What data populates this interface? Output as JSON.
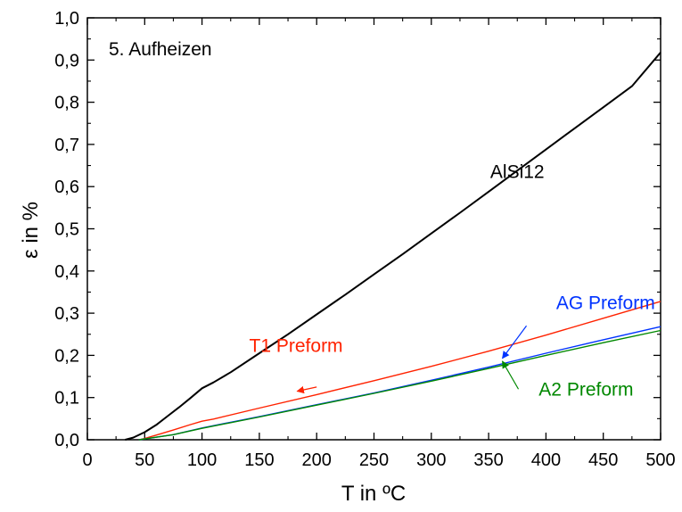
{
  "chart_data": {
    "type": "line",
    "annotation_top_left": "5. Aufheizen",
    "xlabel": "T in ºC",
    "ylabel": "ε in %",
    "xlim": [
      0,
      500
    ],
    "ylim": [
      0.0,
      1.0
    ],
    "x_ticks": [
      "0",
      "50",
      "100",
      "150",
      "200",
      "250",
      "300",
      "350",
      "400",
      "450",
      "500"
    ],
    "y_ticks": [
      "0,0",
      "0,1",
      "0,2",
      "0,3",
      "0,4",
      "0,5",
      "0,6",
      "0,7",
      "0,8",
      "0,9",
      "1,0"
    ],
    "grid": false,
    "series": [
      {
        "name": "AlSi12",
        "color": "#000000",
        "points": [
          [
            33,
            0.0
          ],
          [
            40,
            0.005
          ],
          [
            50,
            0.018
          ],
          [
            60,
            0.035
          ],
          [
            70,
            0.056
          ],
          [
            80,
            0.077
          ],
          [
            90,
            0.099
          ],
          [
            100,
            0.122
          ],
          [
            110,
            0.136
          ],
          [
            125,
            0.16
          ],
          [
            150,
            0.205
          ],
          [
            175,
            0.25
          ],
          [
            200,
            0.297
          ],
          [
            225,
            0.344
          ],
          [
            250,
            0.392
          ],
          [
            275,
            0.44
          ],
          [
            300,
            0.489
          ],
          [
            325,
            0.538
          ],
          [
            350,
            0.588
          ],
          [
            375,
            0.638
          ],
          [
            400,
            0.688
          ],
          [
            425,
            0.738
          ],
          [
            450,
            0.788
          ],
          [
            475,
            0.838
          ],
          [
            500,
            0.918
          ]
        ]
      },
      {
        "name": "T1 Preform",
        "color": "#ff2200",
        "points": [
          [
            45,
            0.0
          ],
          [
            50,
            0.003
          ],
          [
            60,
            0.011
          ],
          [
            75,
            0.023
          ],
          [
            90,
            0.036
          ],
          [
            100,
            0.044
          ],
          [
            110,
            0.049
          ],
          [
            150,
            0.075
          ],
          [
            200,
            0.107
          ],
          [
            250,
            0.14
          ],
          [
            300,
            0.174
          ],
          [
            350,
            0.21
          ],
          [
            400,
            0.248
          ],
          [
            450,
            0.288
          ],
          [
            500,
            0.328
          ]
        ]
      },
      {
        "name": "AG Preform",
        "color": "#0033ff",
        "points": [
          [
            45,
            0.0
          ],
          [
            50,
            0.002
          ],
          [
            75,
            0.012
          ],
          [
            100,
            0.028
          ],
          [
            150,
            0.055
          ],
          [
            200,
            0.083
          ],
          [
            250,
            0.111
          ],
          [
            300,
            0.141
          ],
          [
            350,
            0.172
          ],
          [
            400,
            0.205
          ],
          [
            450,
            0.237
          ],
          [
            500,
            0.268
          ]
        ]
      },
      {
        "name": "A2 Preform",
        "color": "#008800",
        "points": [
          [
            45,
            0.0
          ],
          [
            50,
            0.002
          ],
          [
            75,
            0.012
          ],
          [
            100,
            0.027
          ],
          [
            150,
            0.054
          ],
          [
            200,
            0.082
          ],
          [
            250,
            0.11
          ],
          [
            300,
            0.139
          ],
          [
            350,
            0.169
          ],
          [
            400,
            0.2
          ],
          [
            450,
            0.23
          ],
          [
            500,
            0.259
          ]
        ]
      }
    ],
    "labels": [
      {
        "text": "AlSi12",
        "x": 375,
        "y": 0.62,
        "color": "#000000"
      },
      {
        "text": "T1 Preform",
        "x": 182,
        "y": 0.208,
        "color": "#ff2200"
      },
      {
        "text": "AG Preform",
        "x": 452,
        "y": 0.31,
        "color": "#0033ff"
      },
      {
        "text": "A2 Preform",
        "x": 435,
        "y": 0.105,
        "color": "#008800"
      }
    ],
    "arrows": [
      {
        "color": "#ff2200",
        "from": [
          200,
          0.125
        ],
        "to": [
          183,
          0.115
        ]
      },
      {
        "color": "#0033ff",
        "from": [
          383,
          0.27
        ],
        "to": [
          362,
          0.193
        ]
      },
      {
        "color": "#008800",
        "from": [
          376,
          0.12
        ],
        "to": [
          362,
          0.186
        ]
      }
    ]
  }
}
